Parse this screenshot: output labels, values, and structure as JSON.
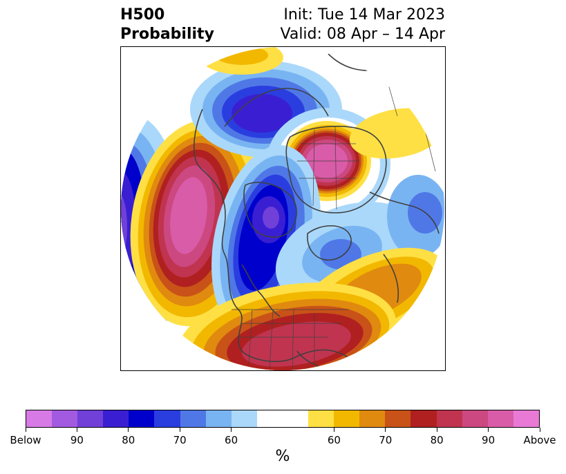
{
  "title": {
    "left_line1": "H500",
    "left_line2": "Probability",
    "right_line1": "Init: Tue 14 Mar 2023",
    "right_line2": "Valid: 08 Apr – 14 Apr"
  },
  "colorbar": {
    "unit": "%",
    "colors": [
      "#d77ae6",
      "#a25ae0",
      "#7040d8",
      "#3a1fd2",
      "#0000cc",
      "#2a3ee0",
      "#4f78e6",
      "#79b4f2",
      "#aad8fa",
      "#ffffff",
      "#ffffff",
      "#ffe044",
      "#f2b800",
      "#e08a10",
      "#c85218",
      "#b02020",
      "#c03450",
      "#cc4880",
      "#d95ca8",
      "#e87ad6"
    ],
    "ticks": [
      {
        "label": "Below"
      },
      {
        "label": "90"
      },
      {
        "label": "80"
      },
      {
        "label": "70"
      },
      {
        "label": "60"
      },
      {
        "label": "60"
      },
      {
        "label": "70"
      },
      {
        "label": "80"
      },
      {
        "label": "90"
      },
      {
        "label": "Above"
      }
    ]
  },
  "map": {
    "projection": "north-polar-stereographic",
    "anomaly_centers": [
      {
        "region": "Gulf of Alaska / eastern North Pacific",
        "sign": "above",
        "peak_percent": 90
      },
      {
        "region": "Hudson Bay / central Canada",
        "sign": "below",
        "peak_percent": 90
      },
      {
        "region": "Siberia / northern Asia",
        "sign": "above",
        "peak_percent": 90
      },
      {
        "region": "Aleutians / Bering Sea",
        "sign": "below",
        "peak_percent": 90
      },
      {
        "region": "Eastern / southern United States",
        "sign": "above",
        "peak_percent": 90
      },
      {
        "region": "North Atlantic",
        "sign": "above",
        "peak_percent": 70
      },
      {
        "region": "Western North Pacific",
        "sign": "below",
        "peak_percent": 90
      },
      {
        "region": "Greenland / Norwegian Sea",
        "sign": "below",
        "peak_percent": 70
      }
    ]
  }
}
